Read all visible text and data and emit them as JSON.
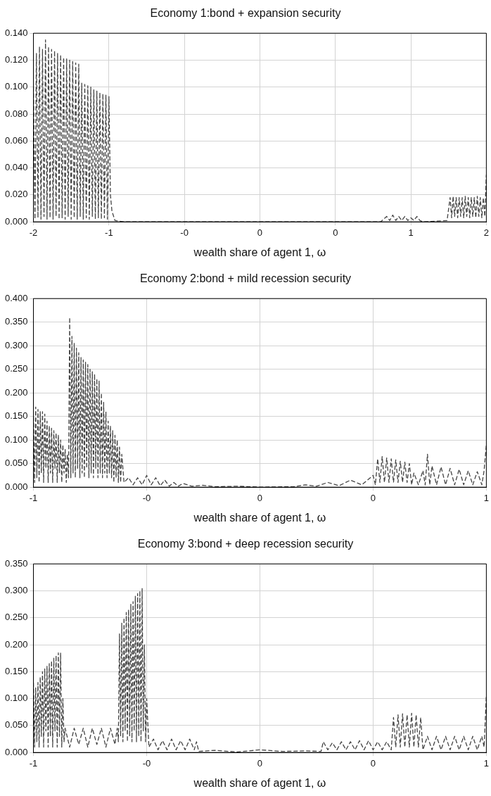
{
  "chart_data": [
    {
      "type": "line",
      "title": "Economy 1:bond + expansion security",
      "xlabel": "wealth share of agent 1, ω",
      "xlim": [
        -1.5,
        1.5
      ],
      "xticks": [
        {
          "value": -1.5,
          "label": "-2"
        },
        {
          "value": -1,
          "label": "-1"
        },
        {
          "value": -0.5,
          "label": "-0"
        },
        {
          "value": 0,
          "label": "0"
        },
        {
          "value": 0.5,
          "label": "0"
        },
        {
          "value": 1,
          "label": "1"
        },
        {
          "value": 1.5,
          "label": "2"
        }
      ],
      "ylim": [
        0,
        0.14
      ],
      "yticks": [
        {
          "value": 0,
          "label": "0.000"
        },
        {
          "value": 0.02,
          "label": "0.020"
        },
        {
          "value": 0.04,
          "label": "0.040"
        },
        {
          "value": 0.06,
          "label": "0.060"
        },
        {
          "value": 0.08,
          "label": "0.080"
        },
        {
          "value": 0.1,
          "label": "0.100"
        },
        {
          "value": 0.12,
          "label": "0.120"
        },
        {
          "value": 0.14,
          "label": "0.140"
        }
      ],
      "grid": true,
      "marker": "none",
      "line_style": "dashed",
      "series": [
        {
          "color": "#444444",
          "x": [
            -1.5,
            -1.49,
            -1.48,
            -1.47,
            -1.46,
            -1.45,
            -1.44,
            -1.43,
            -1.42,
            -1.41,
            -1.4,
            -1.39,
            -1.38,
            -1.37,
            -1.36,
            -1.35,
            -1.34,
            -1.33,
            -1.32,
            -1.31,
            -1.3,
            -1.29,
            -1.28,
            -1.27,
            -1.26,
            -1.25,
            -1.24,
            -1.23,
            -1.22,
            -1.21,
            -1.2,
            -1.19,
            -1.18,
            -1.17,
            -1.16,
            -1.15,
            -1.14,
            -1.13,
            -1.12,
            -1.11,
            -1.1,
            -1.09,
            -1.08,
            -1.07,
            -1.06,
            -1.05,
            -1.04,
            -1.03,
            -1.02,
            -1.01,
            -1.0,
            -0.99,
            -0.98,
            -0.96,
            -0.9,
            0.8,
            0.84,
            0.86,
            0.88,
            0.9,
            0.92,
            0.94,
            0.96,
            0.98,
            1.0,
            1.02,
            1.04,
            1.06,
            1.08,
            1.24,
            1.26,
            1.27,
            1.28,
            1.29,
            1.3,
            1.31,
            1.32,
            1.33,
            1.34,
            1.35,
            1.36,
            1.37,
            1.38,
            1.39,
            1.4,
            1.41,
            1.42,
            1.43,
            1.44,
            1.45,
            1.46,
            1.47,
            1.48,
            1.49,
            1.5
          ],
          "values": [
            0.1,
            0.002,
            0.125,
            0.003,
            0.13,
            0.002,
            0.128,
            0.004,
            0.135,
            0.002,
            0.13,
            0.003,
            0.128,
            0.002,
            0.127,
            0.004,
            0.125,
            0.002,
            0.124,
            0.003,
            0.122,
            0.002,
            0.121,
            0.004,
            0.12,
            0.002,
            0.119,
            0.003,
            0.118,
            0.002,
            0.117,
            0.004,
            0.103,
            0.002,
            0.102,
            0.003,
            0.101,
            0.002,
            0.1,
            0.004,
            0.098,
            0.002,
            0.097,
            0.003,
            0.096,
            0.002,
            0.095,
            0.003,
            0.094,
            0.002,
            0.093,
            0.02,
            0.008,
            0.001,
            0,
            0,
            0.004,
            0.001,
            0.005,
            0.001,
            0.004,
            0.001,
            0.004,
            0.001,
            0.003,
            0.001,
            0.004,
            0.001,
            0,
            0.001,
            0.018,
            0.003,
            0.019,
            0.004,
            0.018,
            0.003,
            0.018,
            0.004,
            0.018,
            0.003,
            0.019,
            0.004,
            0.018,
            0.003,
            0.018,
            0.004,
            0.018,
            0.003,
            0.019,
            0.004,
            0.018,
            0.003,
            0.018,
            0.004,
            0.035
          ]
        }
      ]
    },
    {
      "type": "line",
      "title": "Economy 2:bond + mild recession security",
      "xlabel": "wealth share of agent 1, ω",
      "xlim": [
        -1,
        1
      ],
      "xticks": [
        {
          "value": -1,
          "label": "-1"
        },
        {
          "value": -0.5,
          "label": "-0"
        },
        {
          "value": 0,
          "label": "0"
        },
        {
          "value": 0.5,
          "label": "0"
        },
        {
          "value": 1,
          "label": "1"
        }
      ],
      "ylim": [
        0,
        0.4
      ],
      "yticks": [
        {
          "value": 0,
          "label": "0.000"
        },
        {
          "value": 0.05,
          "label": "0.050"
        },
        {
          "value": 0.1,
          "label": "0.100"
        },
        {
          "value": 0.15,
          "label": "0.150"
        },
        {
          "value": 0.2,
          "label": "0.200"
        },
        {
          "value": 0.25,
          "label": "0.250"
        },
        {
          "value": 0.3,
          "label": "0.300"
        },
        {
          "value": 0.35,
          "label": "0.350"
        },
        {
          "value": 0.4,
          "label": "0.400"
        }
      ],
      "grid": true,
      "marker": "none",
      "line_style": "dashed",
      "series": [
        {
          "color": "#444444",
          "x": [
            -1,
            -0.995,
            -0.99,
            -0.985,
            -0.98,
            -0.975,
            -0.97,
            -0.965,
            -0.96,
            -0.955,
            -0.95,
            -0.945,
            -0.94,
            -0.935,
            -0.93,
            -0.925,
            -0.92,
            -0.915,
            -0.91,
            -0.905,
            -0.9,
            -0.895,
            -0.89,
            -0.885,
            -0.88,
            -0.875,
            -0.87,
            -0.865,
            -0.86,
            -0.855,
            -0.85,
            -0.845,
            -0.84,
            -0.835,
            -0.83,
            -0.825,
            -0.82,
            -0.815,
            -0.81,
            -0.805,
            -0.8,
            -0.795,
            -0.79,
            -0.785,
            -0.78,
            -0.775,
            -0.77,
            -0.765,
            -0.76,
            -0.755,
            -0.75,
            -0.745,
            -0.74,
            -0.735,
            -0.73,
            -0.725,
            -0.72,
            -0.715,
            -0.71,
            -0.705,
            -0.7,
            -0.695,
            -0.69,
            -0.685,
            -0.68,
            -0.675,
            -0.67,
            -0.665,
            -0.66,
            -0.655,
            -0.65,
            -0.645,
            -0.64,
            -0.635,
            -0.63,
            -0.625,
            -0.62,
            -0.615,
            -0.61,
            -0.6,
            -0.58,
            -0.56,
            -0.54,
            -0.52,
            -0.5,
            -0.48,
            -0.46,
            -0.44,
            -0.42,
            -0.4,
            -0.38,
            -0.36,
            -0.34,
            -0.3,
            -0.25,
            -0.2,
            -0.1,
            0,
            0.15,
            0.2,
            0.25,
            0.3,
            0.35,
            0.4,
            0.45,
            0.5,
            0.51,
            0.52,
            0.53,
            0.54,
            0.55,
            0.56,
            0.57,
            0.58,
            0.59,
            0.6,
            0.61,
            0.62,
            0.63,
            0.64,
            0.65,
            0.66,
            0.67,
            0.68,
            0.7,
            0.72,
            0.73,
            0.74,
            0.75,
            0.76,
            0.78,
            0.8,
            0.82,
            0.84,
            0.86,
            0.88,
            0.9,
            0.92,
            0.94,
            0.96,
            0.98,
            0.99,
            1.0
          ],
          "values": [
            0.15,
            0.01,
            0.17,
            0.02,
            0.165,
            0.01,
            0.16,
            0.03,
            0.16,
            0.01,
            0.155,
            0.04,
            0.14,
            0.01,
            0.13,
            0.03,
            0.125,
            0.01,
            0.12,
            0.04,
            0.115,
            0.01,
            0.11,
            0.03,
            0.1,
            0.01,
            0.09,
            0.03,
            0.08,
            0.01,
            0.07,
            0.02,
            0.36,
            0.02,
            0.32,
            0.03,
            0.305,
            0.02,
            0.295,
            0.04,
            0.285,
            0.02,
            0.275,
            0.03,
            0.27,
            0.02,
            0.265,
            0.04,
            0.26,
            0.02,
            0.25,
            0.03,
            0.245,
            0.02,
            0.24,
            0.04,
            0.23,
            0.02,
            0.225,
            0.03,
            0.2,
            0.02,
            0.18,
            0.03,
            0.16,
            0.02,
            0.14,
            0.03,
            0.13,
            0.02,
            0.12,
            0.01,
            0.11,
            0.02,
            0.1,
            0.01,
            0.085,
            0.01,
            0.07,
            0.01,
            0.02,
            0.005,
            0.02,
            0.005,
            0.025,
            0.005,
            0.02,
            0.003,
            0.015,
            0.002,
            0.01,
            0.002,
            0.008,
            0.002,
            0.004,
            0.001,
            0.002,
            0,
            0.001,
            0.005,
            0.002,
            0.01,
            0.003,
            0.015,
            0.005,
            0.025,
            0.005,
            0.06,
            0.01,
            0.065,
            0.01,
            0.062,
            0.01,
            0.06,
            0.01,
            0.058,
            0.01,
            0.055,
            0.01,
            0.053,
            0.01,
            0.05,
            0.005,
            0.03,
            0.005,
            0.035,
            0.005,
            0.07,
            0.005,
            0.045,
            0.005,
            0.043,
            0.005,
            0.04,
            0.005,
            0.038,
            0.005,
            0.035,
            0.005,
            0.033,
            0.005,
            0.035,
            0.09
          ]
        }
      ]
    },
    {
      "type": "line",
      "title": "Economy 3:bond + deep recession security",
      "xlabel": "wealth share of agent 1, ω",
      "xlim": [
        -1,
        1
      ],
      "xticks": [
        {
          "value": -1,
          "label": "-1"
        },
        {
          "value": -0.5,
          "label": "-0"
        },
        {
          "value": 0,
          "label": "0"
        },
        {
          "value": 0.5,
          "label": "0"
        },
        {
          "value": 1,
          "label": "1"
        }
      ],
      "ylim": [
        0,
        0.35
      ],
      "yticks": [
        {
          "value": 0,
          "label": "0.000"
        },
        {
          "value": 0.05,
          "label": "0.050"
        },
        {
          "value": 0.1,
          "label": "0.100"
        },
        {
          "value": 0.15,
          "label": "0.150"
        },
        {
          "value": 0.2,
          "label": "0.200"
        },
        {
          "value": 0.25,
          "label": "0.250"
        },
        {
          "value": 0.3,
          "label": "0.300"
        },
        {
          "value": 0.35,
          "label": "0.350"
        }
      ],
      "grid": true,
      "marker": "none",
      "line_style": "dashed",
      "series": [
        {
          "color": "#444444",
          "x": [
            -1,
            -0.995,
            -0.99,
            -0.985,
            -0.98,
            -0.975,
            -0.97,
            -0.965,
            -0.96,
            -0.955,
            -0.95,
            -0.945,
            -0.94,
            -0.935,
            -0.93,
            -0.925,
            -0.92,
            -0.915,
            -0.91,
            -0.905,
            -0.9,
            -0.895,
            -0.89,
            -0.885,
            -0.88,
            -0.875,
            -0.87,
            -0.865,
            -0.86,
            -0.84,
            -0.82,
            -0.8,
            -0.78,
            -0.76,
            -0.74,
            -0.72,
            -0.7,
            -0.68,
            -0.66,
            -0.64,
            -0.63,
            -0.625,
            -0.62,
            -0.615,
            -0.61,
            -0.605,
            -0.6,
            -0.595,
            -0.59,
            -0.585,
            -0.58,
            -0.575,
            -0.57,
            -0.565,
            -0.56,
            -0.555,
            -0.55,
            -0.545,
            -0.54,
            -0.535,
            -0.53,
            -0.525,
            -0.52,
            -0.515,
            -0.51,
            -0.505,
            -0.5,
            -0.49,
            -0.47,
            -0.45,
            -0.43,
            -0.41,
            -0.39,
            -0.37,
            -0.35,
            -0.33,
            -0.31,
            -0.29,
            -0.28,
            -0.27,
            -0.2,
            -0.1,
            0,
            0.1,
            0.2,
            0.27,
            0.28,
            0.3,
            0.32,
            0.34,
            0.36,
            0.38,
            0.4,
            0.42,
            0.44,
            0.46,
            0.48,
            0.5,
            0.52,
            0.54,
            0.56,
            0.58,
            0.59,
            0.6,
            0.61,
            0.62,
            0.63,
            0.64,
            0.65,
            0.66,
            0.67,
            0.68,
            0.69,
            0.7,
            0.71,
            0.72,
            0.74,
            0.76,
            0.78,
            0.8,
            0.82,
            0.84,
            0.86,
            0.88,
            0.9,
            0.92,
            0.94,
            0.96,
            0.98,
            0.99,
            1.0
          ],
          "values": [
            0.13,
            0.01,
            0.12,
            0.02,
            0.13,
            0.01,
            0.14,
            0.03,
            0.15,
            0.01,
            0.155,
            0.04,
            0.16,
            0.01,
            0.165,
            0.03,
            0.17,
            0.01,
            0.175,
            0.04,
            0.18,
            0.01,
            0.185,
            0.03,
            0.185,
            0.01,
            0.1,
            0.02,
            0.045,
            0.01,
            0.045,
            0.015,
            0.045,
            0.01,
            0.045,
            0.015,
            0.045,
            0.01,
            0.045,
            0.015,
            0.045,
            0.02,
            0.22,
            0.03,
            0.24,
            0.02,
            0.25,
            0.04,
            0.26,
            0.02,
            0.265,
            0.03,
            0.275,
            0.02,
            0.28,
            0.04,
            0.29,
            0.02,
            0.295,
            0.03,
            0.3,
            0.02,
            0.305,
            0.04,
            0.2,
            0.02,
            0.1,
            0.01,
            0.025,
            0.005,
            0.022,
            0.005,
            0.025,
            0.005,
            0.022,
            0.005,
            0.025,
            0.005,
            0.02,
            0.002,
            0.004,
            0.001,
            0.005,
            0.002,
            0.003,
            0.002,
            0.02,
            0.005,
            0.018,
            0.005,
            0.02,
            0.005,
            0.02,
            0.005,
            0.022,
            0.005,
            0.022,
            0.005,
            0.02,
            0.005,
            0.02,
            0.005,
            0.065,
            0.01,
            0.07,
            0.01,
            0.072,
            0.01,
            0.07,
            0.01,
            0.073,
            0.01,
            0.07,
            0.01,
            0.065,
            0.005,
            0.03,
            0.005,
            0.03,
            0.005,
            0.03,
            0.005,
            0.03,
            0.005,
            0.03,
            0.005,
            0.03,
            0.005,
            0.03,
            0.01,
            0.105
          ]
        }
      ]
    }
  ]
}
